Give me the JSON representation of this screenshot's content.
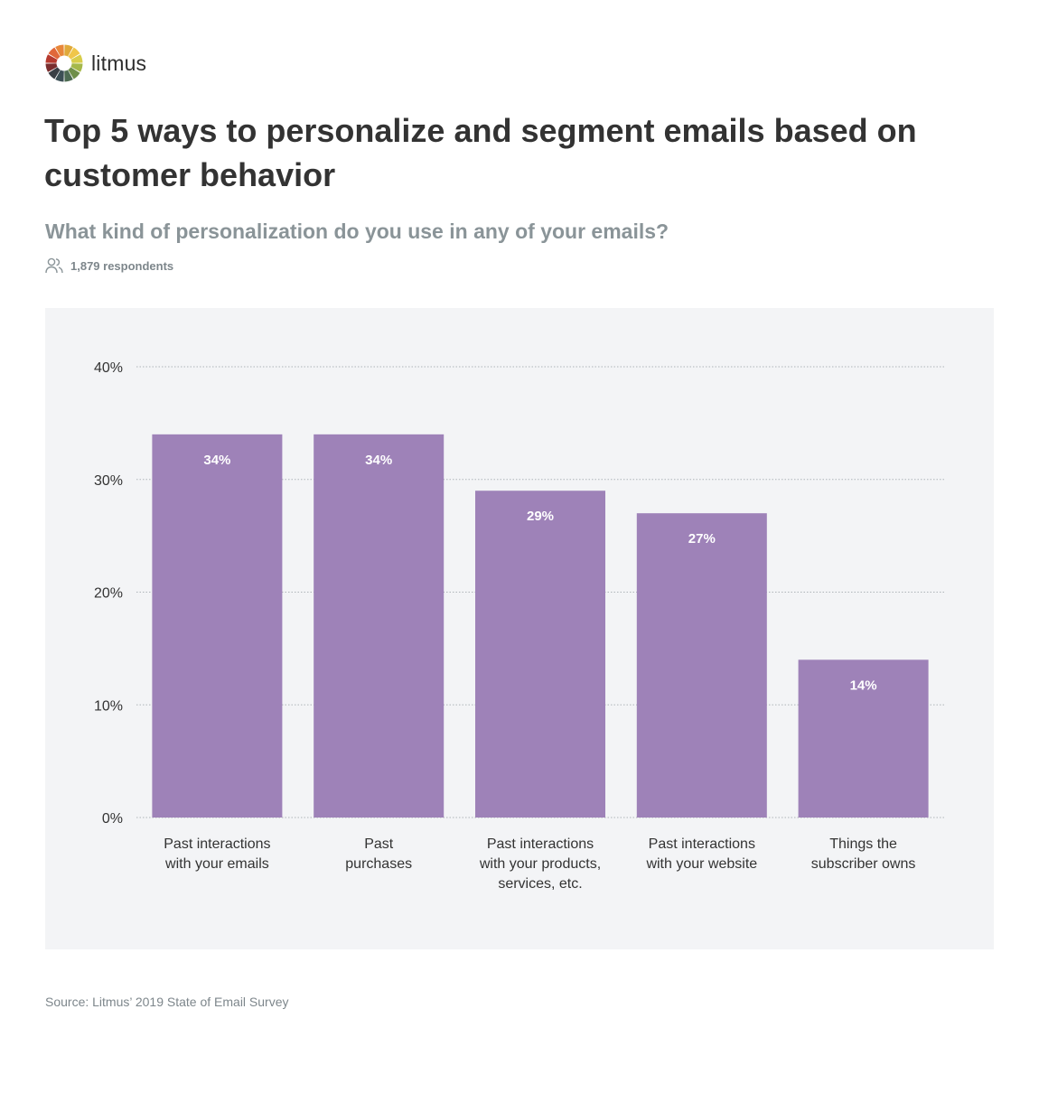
{
  "brand": {
    "name": "litmus",
    "logo_icon": "litmus-color-wheel-icon",
    "logo_colors": [
      "#e0a93a",
      "#f0c64a",
      "#d8cd4a",
      "#a5b84a",
      "#6f8f4a",
      "#4d6b52",
      "#3c4f55",
      "#3a3f45",
      "#7a2e2e",
      "#b63a2e",
      "#e0683a",
      "#e8873a"
    ]
  },
  "title": "Top 5 ways to personalize and segment emails based on customer behavior",
  "subtitle": "What kind of personalization do you use in any of your emails?",
  "respondents": {
    "icon": "users-icon",
    "text": "1,879 respondents"
  },
  "source": "Source: Litmus’ 2019 State of Email Survey",
  "chart_data": {
    "type": "bar",
    "categories": [
      [
        "Past interactions",
        "with your emails"
      ],
      [
        "Past",
        "purchases"
      ],
      [
        "Past interactions",
        "with your products,",
        "services, etc."
      ],
      [
        "Past interactions",
        "with your website"
      ],
      [
        "Things the",
        "subscriber owns"
      ]
    ],
    "values": [
      34,
      34,
      29,
      27,
      14
    ],
    "data_labels": [
      "34%",
      "34%",
      "29%",
      "27%",
      "14%"
    ],
    "ylim": [
      0,
      40
    ],
    "yticks": [
      0,
      10,
      20,
      30,
      40
    ],
    "ytick_labels": [
      "0%",
      "10%",
      "20%",
      "30%",
      "40%"
    ],
    "grid": true,
    "bar_color": "#9e82b8",
    "grid_color": "#aeb3b8",
    "xlabel": "",
    "ylabel": ""
  }
}
